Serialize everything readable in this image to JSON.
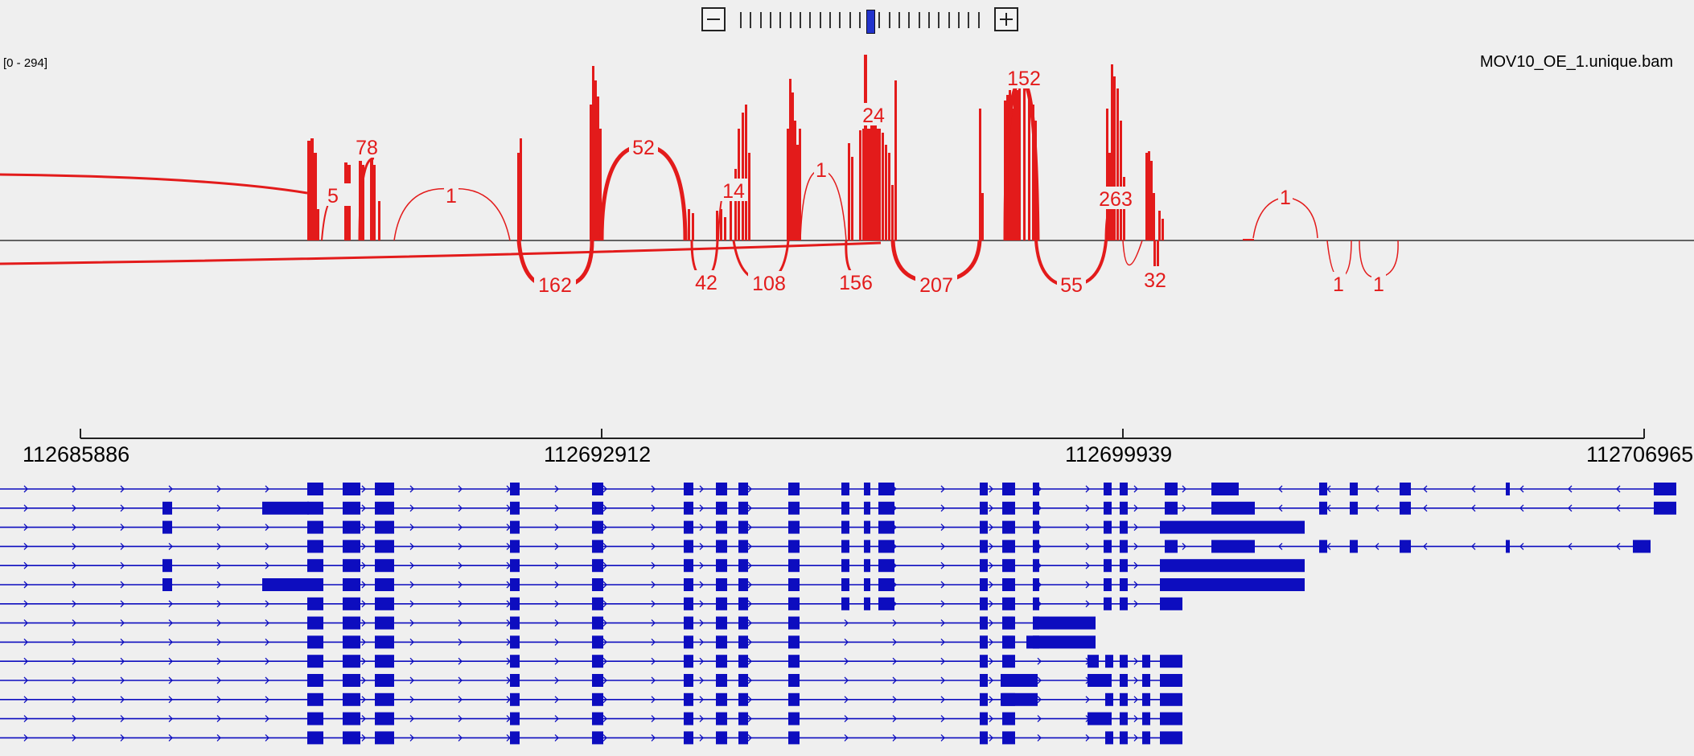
{
  "zoom": {
    "minus_label": "−",
    "plus_label": "+",
    "level_index": 13,
    "level_count": 25
  },
  "track": {
    "data_range": "[0 - 294]",
    "name": "MOV10_OE_1.unique.bam",
    "color": "#e31b1b"
  },
  "junction_labels": [
    "5",
    "78",
    "1",
    "52",
    "14",
    "1",
    "24",
    "152",
    "263",
    "1",
    "162",
    "42",
    "108",
    "156",
    "207",
    "55",
    "32",
    "1",
    "1"
  ],
  "ruler": {
    "positions": [
      "112685886",
      "112692912",
      "112699939",
      "112706965"
    ]
  },
  "genes": {
    "color": "#0d0dbf",
    "transcript_count": 14
  }
}
